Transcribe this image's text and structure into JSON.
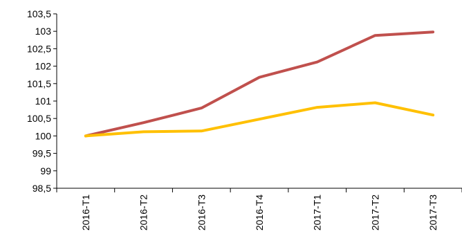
{
  "chart_data": {
    "type": "line",
    "categories": [
      "2016-T1",
      "2016-T2",
      "2016-T3",
      "2016-T4",
      "2017-T1",
      "2017-T2",
      "2017-T3"
    ],
    "series": [
      {
        "values": [
          100.0,
          100.38,
          100.8,
          101.68,
          102.12,
          102.88,
          102.98
        ],
        "color": "#C0504D"
      },
      {
        "values": [
          100.0,
          100.12,
          100.14,
          100.48,
          100.82,
          100.95,
          100.6
        ],
        "color": "#FFC000"
      }
    ],
    "ylim": [
      98.5,
      103.5
    ],
    "y_ticks": [
      "103,5",
      "103",
      "102,5",
      "102",
      "101,5",
      "101",
      "100,5",
      "100",
      "99,5",
      "99",
      "98,5"
    ],
    "grid": false,
    "title": "",
    "xlabel": "",
    "ylabel": ""
  }
}
